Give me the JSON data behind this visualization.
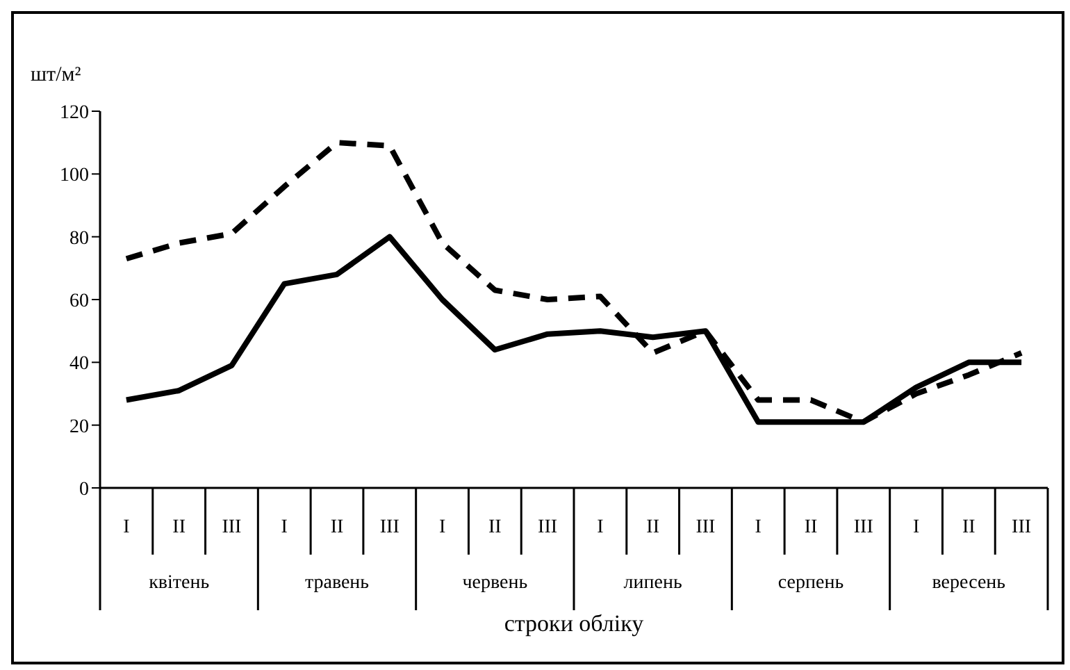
{
  "chart_data": {
    "type": "line",
    "xlabel": "строки обліку",
    "ylabel": "шт/м²",
    "categories": [
      "I",
      "II",
      "III",
      "I",
      "II",
      "III",
      "I",
      "II",
      "III",
      "I",
      "II",
      "III",
      "I",
      "II",
      "III",
      "I",
      "II",
      "III"
    ],
    "annotations": [
      "квітень",
      "травень",
      "червень",
      "липень",
      "серпень",
      "вересень"
    ],
    "series": [
      {
        "color": "#000000",
        "line_style": "solid",
        "values": [
          28,
          31,
          39,
          65,
          68,
          80,
          60,
          44,
          49,
          50,
          48,
          50,
          21,
          21,
          21,
          32,
          40,
          40
        ]
      },
      {
        "color": "#000000",
        "line_style": "dashed",
        "values": [
          73,
          78,
          81,
          96,
          110,
          109,
          78,
          63,
          60,
          61,
          43,
          50,
          28,
          28,
          21,
          30,
          36,
          43
        ]
      }
    ],
    "ylim": [
      0,
      120
    ],
    "yticks": [
      0,
      20,
      40,
      60,
      80,
      100,
      120
    ],
    "marker": "none"
  }
}
